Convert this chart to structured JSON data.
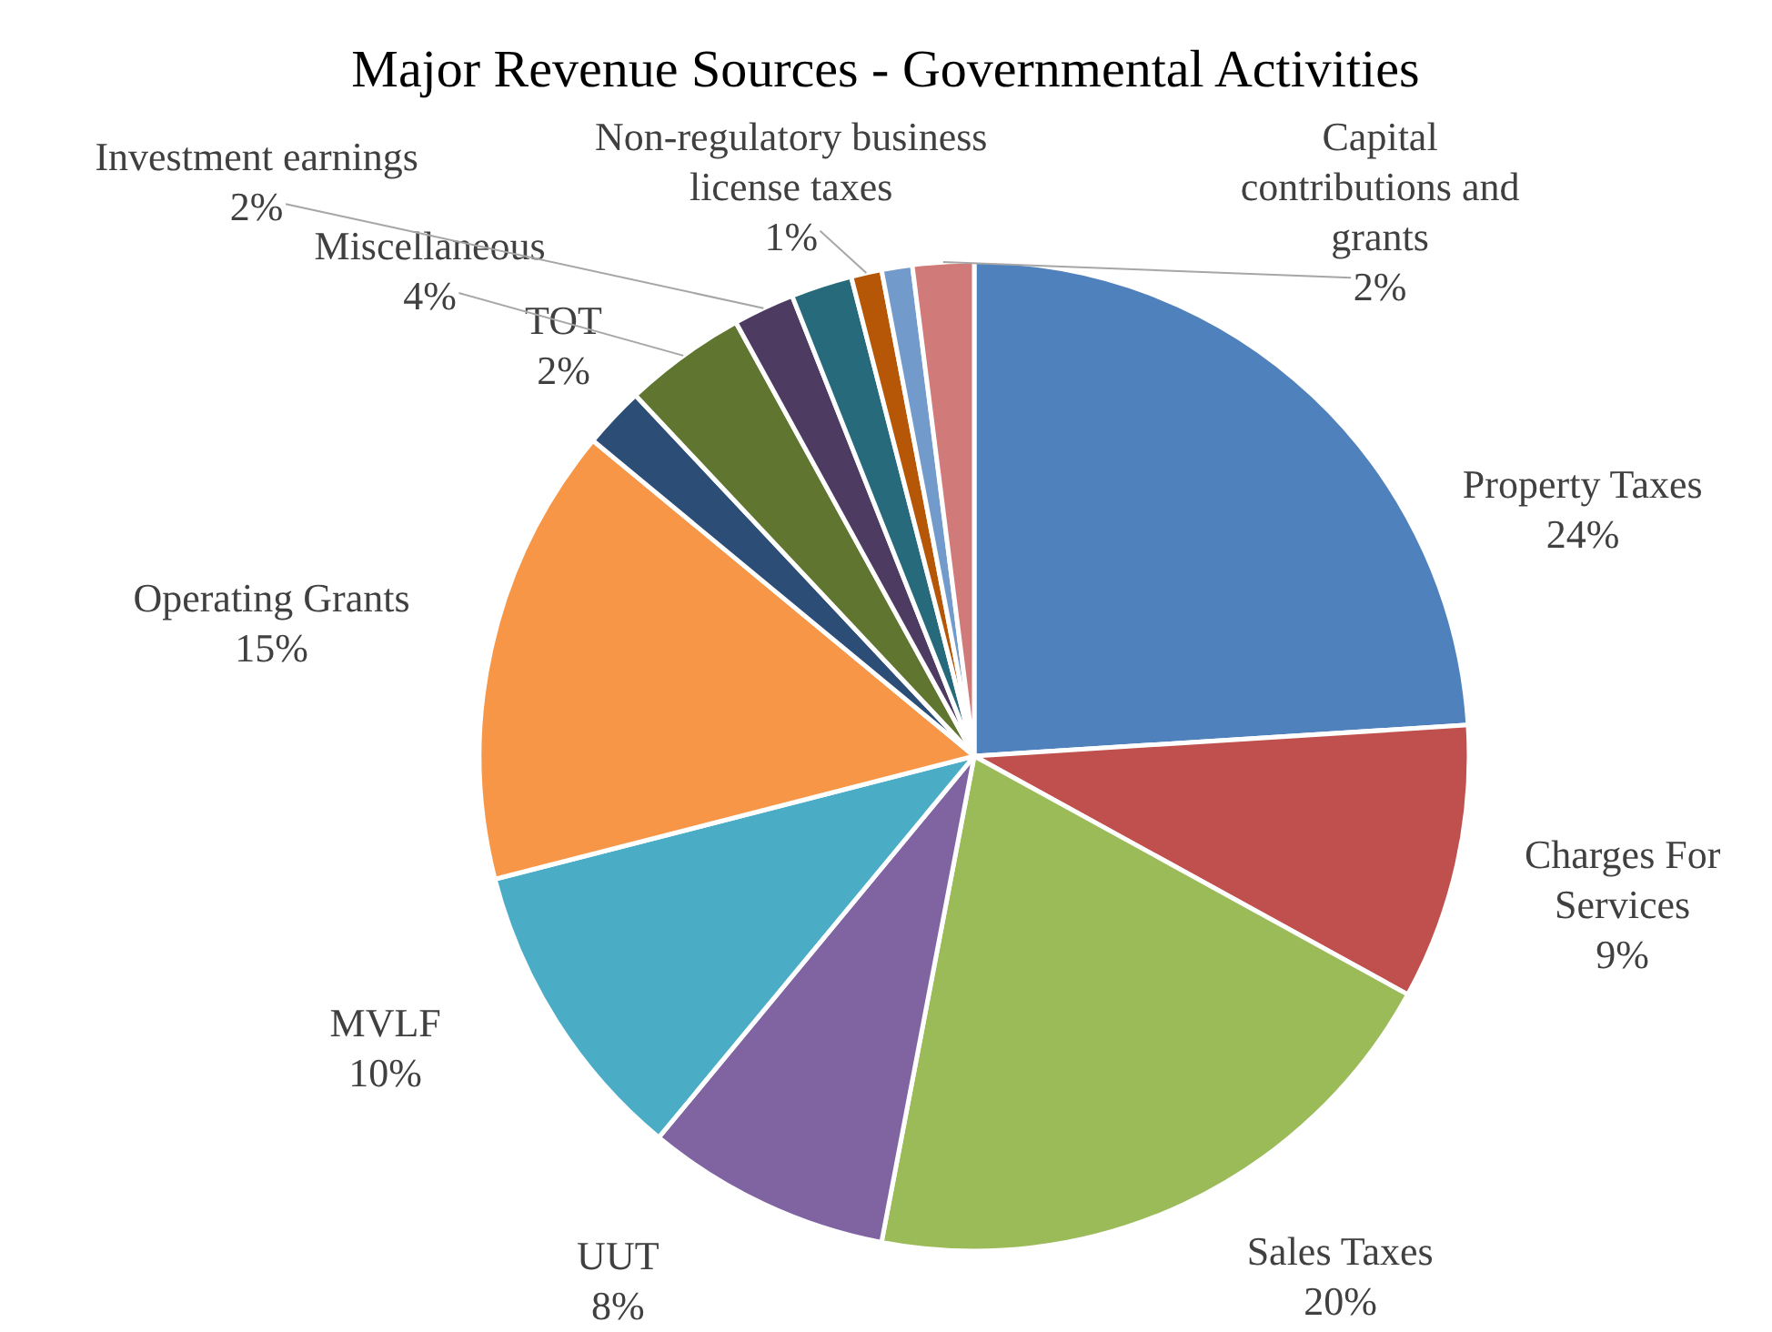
{
  "chart_data": {
    "type": "pie",
    "title": "Major Revenue Sources - Governmental Activities",
    "categories": [
      "Property Taxes",
      "Charges For Services",
      "Sales Taxes",
      "UUT",
      "MVLF",
      "Operating Grants",
      "TOT",
      "Miscellaneous",
      "Investment earnings",
      null,
      "Non-regulatory business license taxes",
      null,
      "Capital contributions and grants"
    ],
    "values": [
      24,
      9,
      20,
      8,
      10,
      15,
      2,
      4,
      2,
      2,
      1,
      1,
      2
    ],
    "value_labels": [
      "24%",
      "9%",
      "20%",
      "8%",
      "10%",
      "15%",
      "2%",
      "4%",
      "2%",
      null,
      "1%",
      null,
      "2%"
    ],
    "colors": [
      "#4f81bd",
      "#c0504d",
      "#9bbb59",
      "#8064a2",
      "#4bacc6",
      "#f79646",
      "#2c4d75",
      "#5f7530",
      "#4d3b62",
      "#276a7c",
      "#b65708",
      "#729aca",
      "#d07b79"
    ]
  }
}
